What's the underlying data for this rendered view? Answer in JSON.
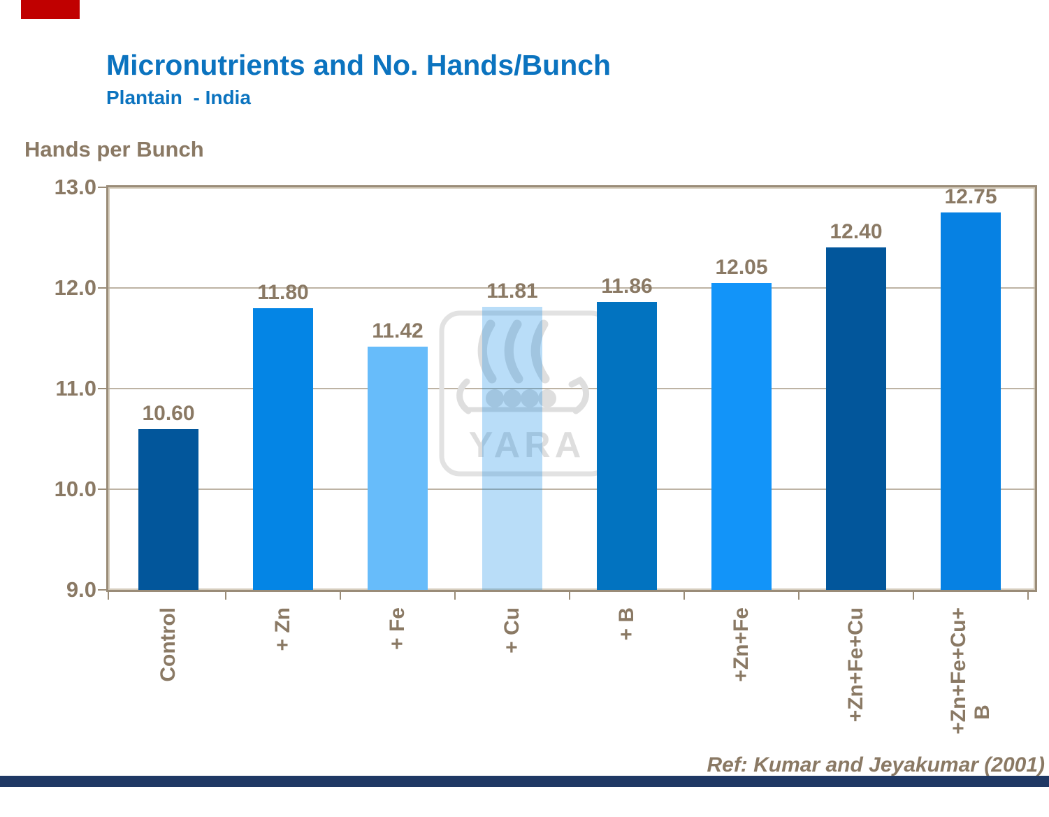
{
  "slide": {
    "title": "Micronutrients and No. Hands/Bunch",
    "subtitle": "Plantain  - India",
    "reference": "Ref: Kumar and Jeyakumar (2001)",
    "accent_color": "#C00000",
    "footer_color": "#1F3864",
    "title_color": "#0B73BF",
    "text_color": "#8A7964"
  },
  "watermark": {
    "text": "YARA",
    "logo": "viking-ship",
    "color": "#DEDEDE"
  },
  "chart_data": {
    "type": "bar",
    "title": "Micronutrients and No. Hands/Bunch",
    "subtitle": "Plantain - India",
    "ylabel": "Hands per Bunch",
    "xlabel": "",
    "ylim": [
      9.0,
      13.0
    ],
    "yticks": [
      "13.0",
      "12.0",
      "11.0",
      "10.0",
      "9.0"
    ],
    "grid": "horizontal-major",
    "legend": "none",
    "categories": [
      "Control",
      "+ Zn",
      "+ Fe",
      "+ Cu",
      "+ B",
      "+Zn+Fe",
      "+Zn+Fe+Cu",
      "+Zn+Fe+Cu+\nB"
    ],
    "values": [
      10.6,
      11.8,
      11.42,
      11.81,
      11.86,
      12.05,
      12.4,
      12.75
    ],
    "value_labels": [
      "10.60",
      "11.80",
      "11.42",
      "11.81",
      "11.86",
      "12.05",
      "12.40",
      "12.75"
    ],
    "bar_colors": [
      "#02569B",
      "#0485E5",
      "#67BCFA",
      "#B8DEFB",
      "#0273C0",
      "#1294F9",
      "#02569B",
      "#0681E3"
    ],
    "bar_fills": [
      "#02569B",
      "#0485E5",
      "#67BCFA",
      "rgba(4,133,229,0.28)",
      "#0273C0",
      "#1294F9",
      "#02569B",
      "#0681E3"
    ],
    "label_color": "#8A7964",
    "gridline_color": "#BDB3A4",
    "frame_color": "#9A8C78",
    "reference": "Ref: Kumar and Jeyakumar (2001)"
  }
}
